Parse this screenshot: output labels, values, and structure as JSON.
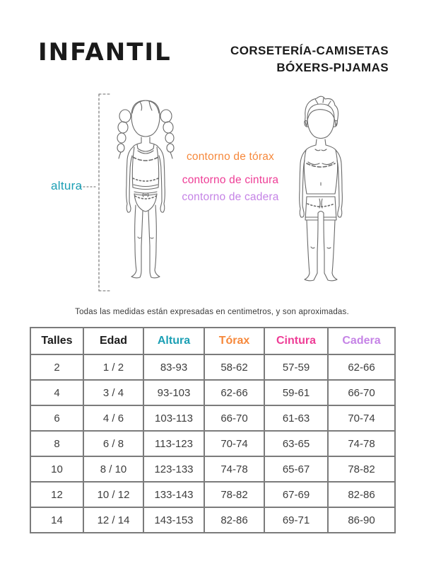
{
  "header": {
    "title": "INFANTIL",
    "subtitle_line1": "CORSETERÍA-CAMISETAS",
    "subtitle_line2": "BÓXERS-PIJAMAS"
  },
  "diagram": {
    "height_label": "altura",
    "chest_label": "contorno de tórax",
    "waist_label": "contorno de cintura",
    "hip_label": "contorno de cadera",
    "colors": {
      "height": "#1b9fb4",
      "chest": "#f6883b",
      "waist": "#ee3d96",
      "hip": "#c583e6"
    }
  },
  "note": "Todas las medidas están expresadas en centimetros, y son aproximadas.",
  "table": {
    "columns": [
      {
        "key": "talles",
        "label": "Talles",
        "color": "#1c1c1c"
      },
      {
        "key": "edad",
        "label": "Edad",
        "color": "#1c1c1c"
      },
      {
        "key": "altura",
        "label": "Altura",
        "color": "#1b9fb4"
      },
      {
        "key": "torax",
        "label": "Tórax",
        "color": "#f6883b"
      },
      {
        "key": "cintura",
        "label": "Cintura",
        "color": "#ee3d96"
      },
      {
        "key": "cadera",
        "label": "Cadera",
        "color": "#c583e6"
      }
    ],
    "rows": [
      [
        "2",
        "1 / 2",
        "83-93",
        "58-62",
        "57-59",
        "62-66"
      ],
      [
        "4",
        "3 / 4",
        "93-103",
        "62-66",
        "59-61",
        "66-70"
      ],
      [
        "6",
        "4 / 6",
        "103-113",
        "66-70",
        "61-63",
        "70-74"
      ],
      [
        "8",
        "6 / 8",
        "113-123",
        "70-74",
        "63-65",
        "74-78"
      ],
      [
        "10",
        "8 / 10",
        "123-133",
        "74-78",
        "65-67",
        "78-82"
      ],
      [
        "12",
        "10 / 12",
        "133-143",
        "78-82",
        "67-69",
        "82-86"
      ],
      [
        "14",
        "12 / 14",
        "143-153",
        "82-86",
        "69-71",
        "86-90"
      ]
    ]
  }
}
